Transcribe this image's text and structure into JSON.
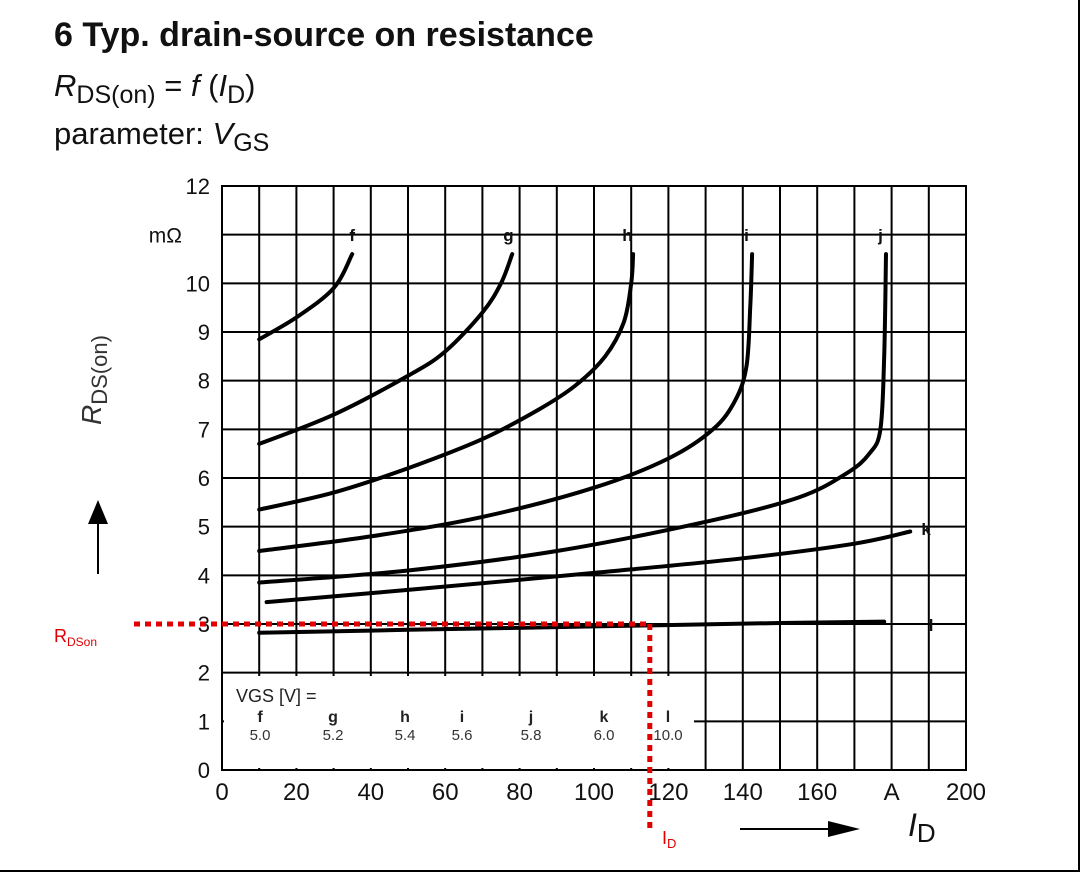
{
  "header": {
    "title": "6 Typ. drain-source on resistance",
    "formula": {
      "r": "R",
      "r_sub": "DS(on)",
      "eq": " = ",
      "f": "f",
      "open": " (",
      "i": "I",
      "i_sub": "D",
      "close": ")"
    },
    "param_label": "parameter: ",
    "param_v": "V",
    "param_sub": "GS"
  },
  "chart_data": {
    "type": "line",
    "title": "6 Typ. drain-source on resistance",
    "xlabel": "I_D",
    "x_unit": "A",
    "ylabel": "R_DS(on)",
    "y_unit": "mΩ",
    "xlim": [
      0,
      200
    ],
    "ylim": [
      0,
      12
    ],
    "x_ticks": [
      "0",
      "20",
      "40",
      "60",
      "80",
      "100",
      "120",
      "140",
      "160",
      "A",
      "200"
    ],
    "y_ticks": [
      "0",
      "1",
      "2",
      "3",
      "4",
      "5",
      "6",
      "7",
      "8",
      "9",
      "10",
      "12"
    ],
    "grid": true,
    "legend_title": "V_GS [V] =",
    "legend_keys": [
      "f",
      "g",
      "h",
      "i",
      "j",
      "k",
      "l"
    ],
    "legend_values": [
      "5.0",
      "5.2",
      "5.4",
      "5.6",
      "5.8",
      "6.0",
      "10.0"
    ],
    "series": [
      {
        "name": "f",
        "vgs": 5.0,
        "x": [
          10,
          20,
          30,
          35
        ],
        "y": [
          8.85,
          9.3,
          9.9,
          10.6
        ]
      },
      {
        "name": "g",
        "vgs": 5.2,
        "x": [
          10,
          30,
          50,
          60,
          70,
          75,
          78
        ],
        "y": [
          6.7,
          7.3,
          8.1,
          8.6,
          9.4,
          10.0,
          10.6
        ]
      },
      {
        "name": "h",
        "vgs": 5.4,
        "x": [
          10,
          30,
          50,
          70,
          85,
          95,
          103,
          108,
          110,
          110.5
        ],
        "y": [
          5.35,
          5.7,
          6.2,
          6.8,
          7.4,
          7.9,
          8.5,
          9.2,
          10.0,
          10.6
        ]
      },
      {
        "name": "i",
        "vgs": 5.6,
        "x": [
          10,
          40,
          70,
          100,
          120,
          132,
          138,
          141,
          142,
          142.5
        ],
        "y": [
          4.5,
          4.8,
          5.2,
          5.8,
          6.4,
          7.0,
          7.6,
          8.3,
          9.5,
          10.6
        ]
      },
      {
        "name": "j",
        "vgs": 5.8,
        "x": [
          10,
          50,
          90,
          130,
          155,
          168,
          174,
          177,
          178,
          178.5
        ],
        "y": [
          3.85,
          4.1,
          4.5,
          5.1,
          5.6,
          6.1,
          6.5,
          7.0,
          8.5,
          10.6
        ]
      },
      {
        "name": "k",
        "vgs": 6.0,
        "x": [
          12,
          50,
          100,
          140,
          170,
          185
        ],
        "y": [
          3.45,
          3.7,
          4.05,
          4.35,
          4.65,
          4.9
        ]
      },
      {
        "name": "l",
        "vgs": 10.0,
        "x": [
          10,
          50,
          100,
          150,
          178
        ],
        "y": [
          2.82,
          2.88,
          2.95,
          3.02,
          3.05
        ]
      }
    ],
    "series_label_l": "l",
    "annotations": [
      {
        "text": "R",
        "sub": "DSon",
        "value": 3,
        "color": "#e00000"
      },
      {
        "text": "I",
        "sub": "D",
        "value": 115,
        "color": "#e00000"
      }
    ]
  }
}
